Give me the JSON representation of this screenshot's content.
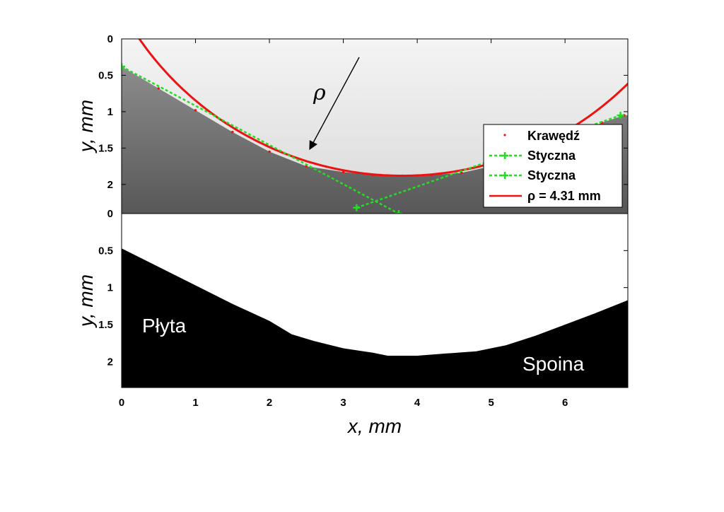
{
  "chart_data": [
    {
      "type": "line",
      "panel": "top",
      "xlim": [
        0,
        6.85
      ],
      "ylim": [
        2.4,
        0
      ],
      "ylabel": "y, mm",
      "yticks": [
        "0",
        "0.5",
        "1",
        "1.5",
        "2"
      ],
      "background": "grayscale micrograph: light weld region above edge, dark plate below",
      "series": [
        {
          "name": "Krawędź",
          "style": "red points",
          "color": "#ee1111",
          "x": [
            0.0,
            0.5,
            1.0,
            1.5,
            2.0,
            2.5,
            3.0,
            3.4,
            3.8,
            4.2,
            4.6,
            5.0,
            5.5,
            6.0,
            6.5,
            6.8
          ],
          "y": [
            0.38,
            0.68,
            0.98,
            1.28,
            1.55,
            1.75,
            1.83,
            1.87,
            1.88,
            1.87,
            1.84,
            1.75,
            1.6,
            1.4,
            1.15,
            1.05
          ]
        },
        {
          "name": "Styczna",
          "style": "green dashed with + markers",
          "color": "#22dd22",
          "x": [
            0.0,
            3.75
          ],
          "y": [
            0.38,
            2.4
          ]
        },
        {
          "name": "Styczna",
          "style": "green dashed with + markers",
          "color": "#22dd22",
          "x": [
            3.18,
            6.75
          ],
          "y": [
            2.32,
            1.05
          ]
        },
        {
          "name": "ρ = 4.31 mm",
          "style": "red solid",
          "color": "#ee1111",
          "circle": {
            "cx": 3.8,
            "cy": -2.43,
            "r": 4.31
          }
        }
      ],
      "legend": {
        "placement": "right",
        "entries": [
          "Krawędź",
          "Styczna",
          "Styczna",
          "ρ = 4.31 mm"
        ]
      },
      "annotation": {
        "text": "ρ",
        "arrow": true
      }
    },
    {
      "type": "area",
      "panel": "bottom",
      "xlim": [
        0,
        6.85
      ],
      "ylim": [
        2.35,
        0
      ],
      "xlabel": "x, mm",
      "ylabel": "y, mm",
      "xticks": [
        "0",
        "1",
        "2",
        "3",
        "4",
        "5",
        "6"
      ],
      "yticks": [
        "0.5",
        "1",
        "1.5",
        "2"
      ],
      "series": [
        {
          "name": "",
          "color": "#000000",
          "x": [
            0.0,
            0.5,
            1.0,
            1.5,
            2.0,
            2.3,
            2.6,
            3.0,
            3.4,
            3.6,
            4.0,
            4.4,
            4.8,
            5.2,
            5.6,
            6.0,
            6.4,
            6.85
          ],
          "y": [
            0.47,
            0.72,
            0.97,
            1.22,
            1.45,
            1.63,
            1.72,
            1.82,
            1.88,
            1.92,
            1.92,
            1.89,
            1.86,
            1.78,
            1.65,
            1.5,
            1.35,
            1.17
          ]
        }
      ],
      "annotations": [
        "Płyta",
        "Spoina"
      ]
    }
  ],
  "labels": {
    "top_ylabel": "y, mm",
    "bottom_ylabel": "y, mm",
    "xlabel": "x, mm",
    "rho": "ρ",
    "legend": [
      "Krawędź",
      "Styczna",
      "Styczna",
      "ρ = 4.31 mm"
    ],
    "region_plate": "Płyta",
    "region_weld": "Spoina"
  },
  "colors": {
    "edge": "#ee1111",
    "tangent": "#22dd22",
    "fit": "#ee1111",
    "plate": "#000000"
  }
}
